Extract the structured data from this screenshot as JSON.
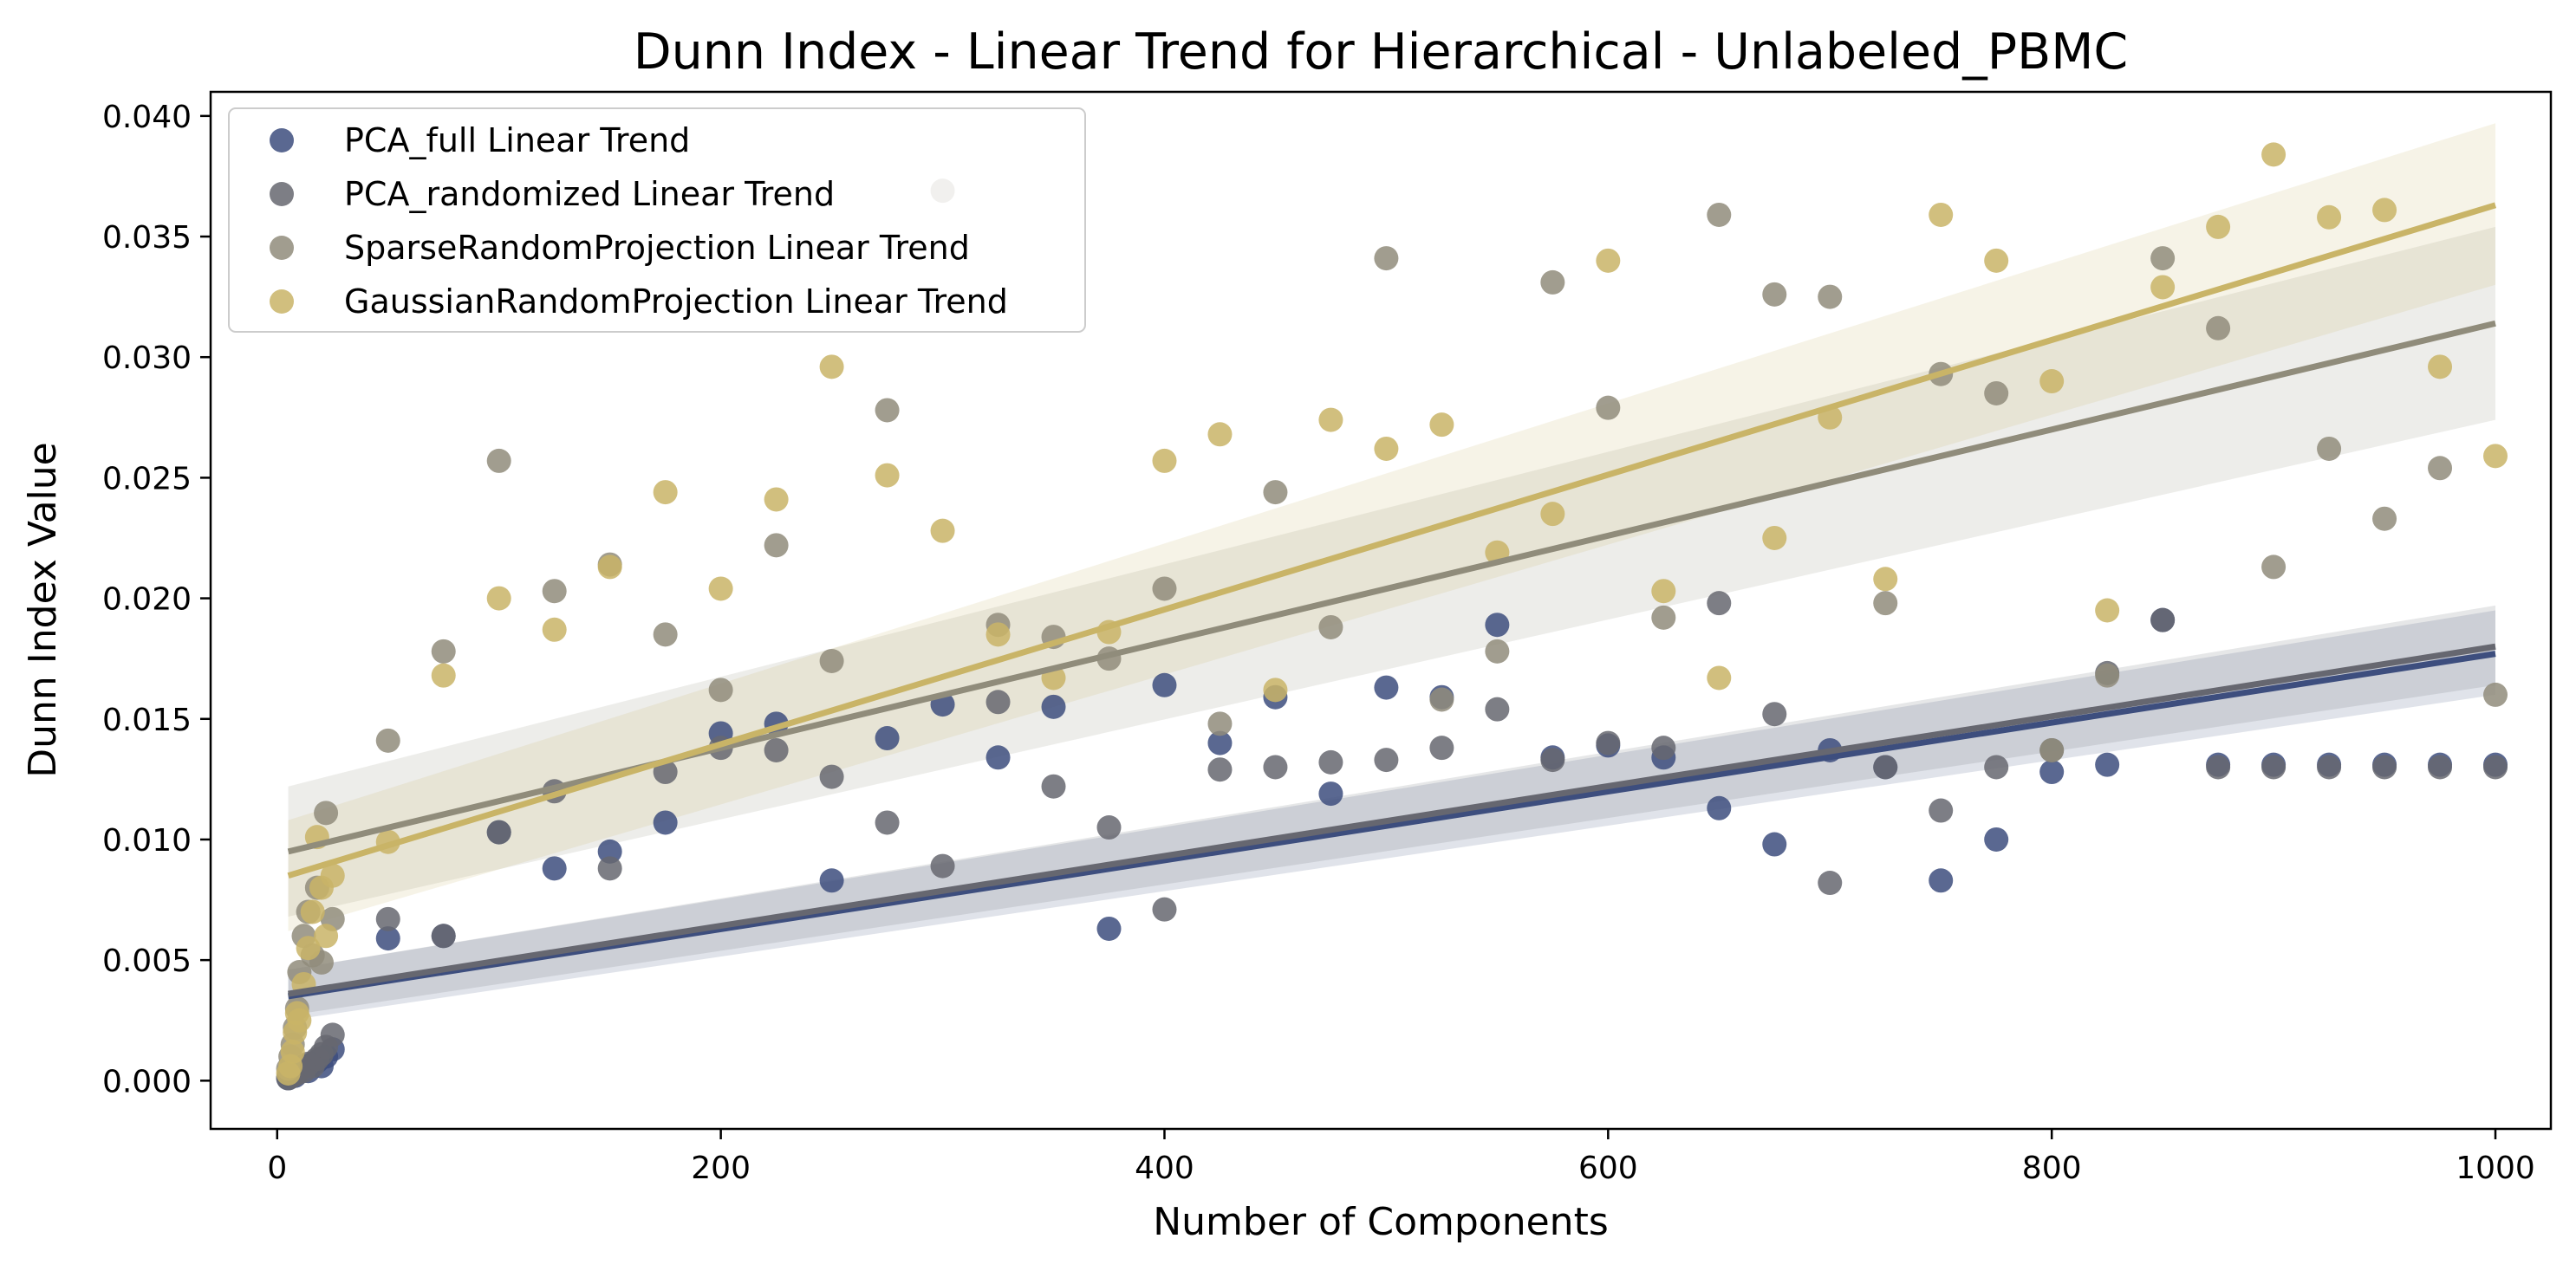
{
  "chart_data": {
    "type": "scatter",
    "title": "Dunn Index - Linear Trend for Hierarchical - Unlabeled_PBMC",
    "xlabel": "Number of Components",
    "ylabel": "Dunn Index Value",
    "xlim": [
      -30,
      1025
    ],
    "ylim": [
      -0.002,
      0.041
    ],
    "xticks": [
      0,
      200,
      400,
      600,
      800,
      1000
    ],
    "xtick_labels": [
      "0",
      "200",
      "400",
      "600",
      "800",
      "1000"
    ],
    "yticks": [
      0.0,
      0.005,
      0.01,
      0.015,
      0.02,
      0.025,
      0.03,
      0.035,
      0.04
    ],
    "ytick_labels": [
      "0.000",
      "0.005",
      "0.010",
      "0.015",
      "0.020",
      "0.025",
      "0.030",
      "0.035",
      "0.040"
    ],
    "grid": false,
    "legend_position": "top-left",
    "series": [
      {
        "name": "PCA_full Linear Trend",
        "color": "#3d4e7e",
        "trend": [
          0.0035,
          0.0177
        ],
        "band_low": [
          0.0025,
          0.016
        ],
        "band_high": [
          0.0046,
          0.0195
        ],
        "points": [
          [
            5,
            0.0001
          ],
          [
            6,
            0.0002
          ],
          [
            7,
            0.0003
          ],
          [
            8,
            0.0002
          ],
          [
            9,
            0.0004
          ],
          [
            10,
            0.0005
          ],
          [
            12,
            0.0006
          ],
          [
            14,
            0.0004
          ],
          [
            16,
            0.0007
          ],
          [
            18,
            0.0008
          ],
          [
            20,
            0.0006
          ],
          [
            22,
            0.001
          ],
          [
            25,
            0.0013
          ],
          [
            50,
            0.0059
          ],
          [
            75,
            0.006
          ],
          [
            100,
            0.0103
          ],
          [
            125,
            0.0088
          ],
          [
            150,
            0.0095
          ],
          [
            175,
            0.0107
          ],
          [
            200,
            0.0144
          ],
          [
            225,
            0.0148
          ],
          [
            250,
            0.0083
          ],
          [
            275,
            0.0142
          ],
          [
            300,
            0.0156
          ],
          [
            325,
            0.0134
          ],
          [
            350,
            0.0155
          ],
          [
            375,
            0.0063
          ],
          [
            400,
            0.0164
          ],
          [
            425,
            0.014
          ],
          [
            450,
            0.0159
          ],
          [
            475,
            0.0119
          ],
          [
            500,
            0.0163
          ],
          [
            525,
            0.0159
          ],
          [
            550,
            0.0189
          ],
          [
            575,
            0.0134
          ],
          [
            600,
            0.0139
          ],
          [
            625,
            0.0134
          ],
          [
            650,
            0.0113
          ],
          [
            675,
            0.0098
          ],
          [
            700,
            0.0137
          ],
          [
            725,
            0.013
          ],
          [
            750,
            0.0083
          ],
          [
            775,
            0.01
          ],
          [
            800,
            0.0128
          ],
          [
            825,
            0.0131
          ],
          [
            850,
            0.0191
          ],
          [
            875,
            0.0131
          ],
          [
            900,
            0.0131
          ],
          [
            925,
            0.0131
          ],
          [
            950,
            0.0131
          ],
          [
            975,
            0.0131
          ],
          [
            1000,
            0.0131
          ]
        ]
      },
      {
        "name": "PCA_randomized Linear Trend",
        "color": "#666770",
        "trend": [
          0.0036,
          0.018
        ],
        "band_low": [
          0.0027,
          0.0164
        ],
        "band_high": [
          0.0046,
          0.0197
        ],
        "points": [
          [
            5,
            0.0001
          ],
          [
            6,
            0.0003
          ],
          [
            7,
            0.0002
          ],
          [
            8,
            0.0004
          ],
          [
            9,
            0.0003
          ],
          [
            10,
            0.0005
          ],
          [
            12,
            0.0004
          ],
          [
            14,
            0.0007
          ],
          [
            16,
            0.0006
          ],
          [
            18,
            0.0009
          ],
          [
            20,
            0.0011
          ],
          [
            22,
            0.0014
          ],
          [
            25,
            0.0019
          ],
          [
            50,
            0.0067
          ],
          [
            75,
            0.006
          ],
          [
            100,
            0.0103
          ],
          [
            125,
            0.012
          ],
          [
            150,
            0.0088
          ],
          [
            175,
            0.0128
          ],
          [
            200,
            0.0138
          ],
          [
            225,
            0.0137
          ],
          [
            250,
            0.0126
          ],
          [
            275,
            0.0107
          ],
          [
            300,
            0.0089
          ],
          [
            325,
            0.0157
          ],
          [
            350,
            0.0122
          ],
          [
            375,
            0.0105
          ],
          [
            400,
            0.0071
          ],
          [
            425,
            0.0129
          ],
          [
            450,
            0.013
          ],
          [
            475,
            0.0132
          ],
          [
            500,
            0.0133
          ],
          [
            525,
            0.0138
          ],
          [
            550,
            0.0154
          ],
          [
            575,
            0.0133
          ],
          [
            600,
            0.014
          ],
          [
            625,
            0.0138
          ],
          [
            650,
            0.0198
          ],
          [
            675,
            0.0152
          ],
          [
            700,
            0.0082
          ],
          [
            725,
            0.013
          ],
          [
            750,
            0.0112
          ],
          [
            775,
            0.013
          ],
          [
            800,
            0.0137
          ],
          [
            825,
            0.0169
          ],
          [
            850,
            0.0191
          ],
          [
            875,
            0.013
          ],
          [
            900,
            0.013
          ],
          [
            925,
            0.013
          ],
          [
            950,
            0.013
          ],
          [
            975,
            0.013
          ],
          [
            1000,
            0.013
          ]
        ]
      },
      {
        "name": "SparseRandomProjection Linear Trend",
        "color": "#908c7b",
        "trend": [
          0.0095,
          0.0314
        ],
        "band_low": [
          0.0068,
          0.0274
        ],
        "band_high": [
          0.0122,
          0.0354
        ],
        "points": [
          [
            5,
            0.0005
          ],
          [
            6,
            0.001
          ],
          [
            7,
            0.0015
          ],
          [
            8,
            0.0022
          ],
          [
            9,
            0.003
          ],
          [
            10,
            0.0045
          ],
          [
            12,
            0.006
          ],
          [
            14,
            0.007
          ],
          [
            16,
            0.0052
          ],
          [
            18,
            0.008
          ],
          [
            20,
            0.0049
          ],
          [
            22,
            0.0111
          ],
          [
            25,
            0.0067
          ],
          [
            50,
            0.0141
          ],
          [
            75,
            0.0178
          ],
          [
            100,
            0.0257
          ],
          [
            125,
            0.0203
          ],
          [
            150,
            0.0214
          ],
          [
            175,
            0.0185
          ],
          [
            200,
            0.0162
          ],
          [
            225,
            0.0222
          ],
          [
            250,
            0.0174
          ],
          [
            275,
            0.0278
          ],
          [
            300,
            0.0369
          ],
          [
            325,
            0.0189
          ],
          [
            350,
            0.0184
          ],
          [
            375,
            0.0175
          ],
          [
            400,
            0.0204
          ],
          [
            425,
            0.0148
          ],
          [
            450,
            0.0244
          ],
          [
            475,
            0.0188
          ],
          [
            500,
            0.0341
          ],
          [
            525,
            0.0158
          ],
          [
            550,
            0.0178
          ],
          [
            575,
            0.0331
          ],
          [
            600,
            0.0279
          ],
          [
            625,
            0.0192
          ],
          [
            650,
            0.0359
          ],
          [
            675,
            0.0326
          ],
          [
            700,
            0.0325
          ],
          [
            725,
            0.0198
          ],
          [
            750,
            0.0293
          ],
          [
            775,
            0.0285
          ],
          [
            800,
            0.0137
          ],
          [
            825,
            0.0168
          ],
          [
            850,
            0.0341
          ],
          [
            875,
            0.0312
          ],
          [
            900,
            0.0213
          ],
          [
            925,
            0.0262
          ],
          [
            950,
            0.0233
          ],
          [
            975,
            0.0254
          ],
          [
            1000,
            0.016
          ]
        ]
      },
      {
        "name": "GaussianRandomProjection Linear Trend",
        "color": "#c9b467",
        "trend": [
          0.0085,
          0.0363
        ],
        "band_low": [
          0.0062,
          0.033
        ],
        "band_high": [
          0.0108,
          0.0397
        ],
        "points": [
          [
            5,
            0.0003
          ],
          [
            6,
            0.0006
          ],
          [
            7,
            0.0012
          ],
          [
            8,
            0.002
          ],
          [
            9,
            0.0028
          ],
          [
            10,
            0.0025
          ],
          [
            12,
            0.004
          ],
          [
            14,
            0.0055
          ],
          [
            16,
            0.007
          ],
          [
            18,
            0.0101
          ],
          [
            20,
            0.008
          ],
          [
            22,
            0.006
          ],
          [
            25,
            0.0085
          ],
          [
            50,
            0.0099
          ],
          [
            75,
            0.0168
          ],
          [
            100,
            0.02
          ],
          [
            125,
            0.0187
          ],
          [
            150,
            0.0213
          ],
          [
            175,
            0.0244
          ],
          [
            200,
            0.0204
          ],
          [
            225,
            0.0241
          ],
          [
            250,
            0.0296
          ],
          [
            275,
            0.0251
          ],
          [
            300,
            0.0228
          ],
          [
            325,
            0.0185
          ],
          [
            350,
            0.0167
          ],
          [
            375,
            0.0186
          ],
          [
            400,
            0.0257
          ],
          [
            425,
            0.0268
          ],
          [
            450,
            0.0162
          ],
          [
            475,
            0.0274
          ],
          [
            500,
            0.0262
          ],
          [
            525,
            0.0272
          ],
          [
            550,
            0.0219
          ],
          [
            575,
            0.0235
          ],
          [
            600,
            0.034
          ],
          [
            625,
            0.0203
          ],
          [
            650,
            0.0167
          ],
          [
            675,
            0.0225
          ],
          [
            700,
            0.0275
          ],
          [
            725,
            0.0208
          ],
          [
            750,
            0.0359
          ],
          [
            775,
            0.034
          ],
          [
            800,
            0.029
          ],
          [
            825,
            0.0195
          ],
          [
            850,
            0.0329
          ],
          [
            875,
            0.0354
          ],
          [
            900,
            0.0384
          ],
          [
            925,
            0.0358
          ],
          [
            950,
            0.0361
          ],
          [
            975,
            0.0296
          ],
          [
            1000,
            0.0259
          ]
        ]
      }
    ]
  }
}
